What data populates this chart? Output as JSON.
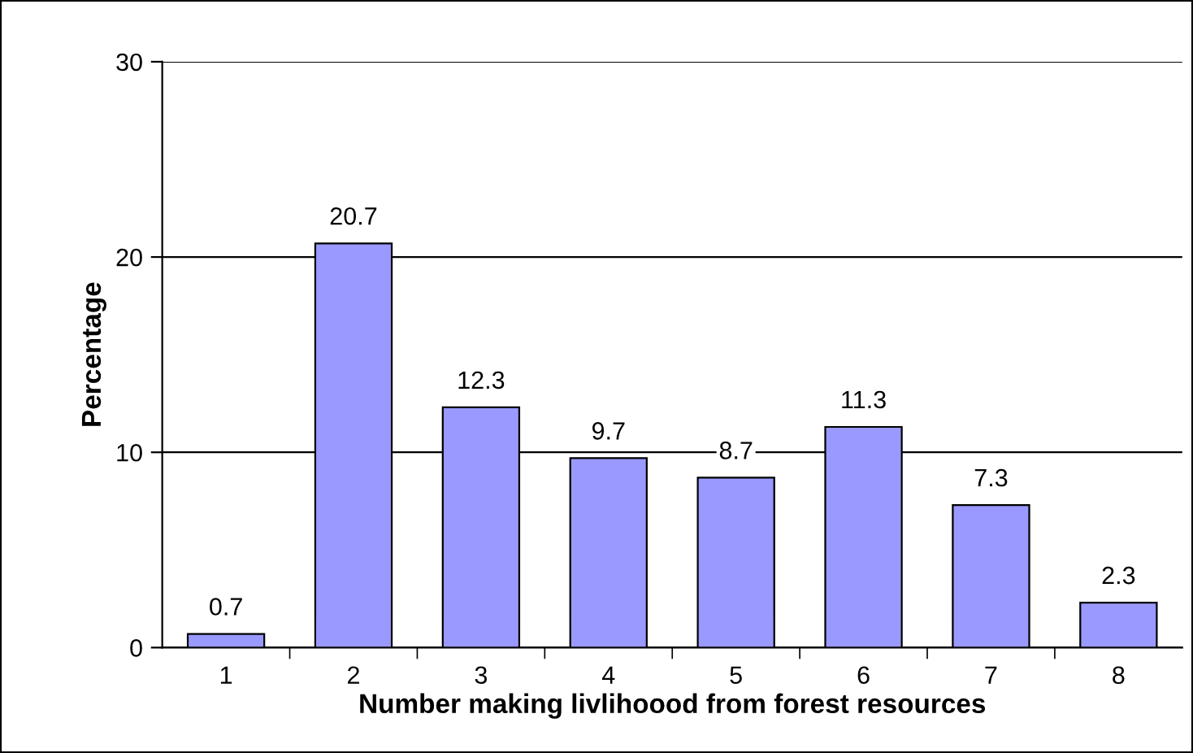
{
  "chart_data": {
    "type": "bar",
    "xlabel": "Number making livlihoood from forest resources",
    "ylabel": "Percentage",
    "categories": [
      "1",
      "2",
      "3",
      "4",
      "5",
      "6",
      "7",
      "8"
    ],
    "values": [
      0.7,
      20.7,
      12.3,
      9.7,
      8.7,
      11.3,
      7.3,
      2.3
    ],
    "color": "#9999ff",
    "ylim": [
      0,
      30
    ],
    "yticks": [
      0,
      10,
      20,
      30
    ],
    "grid": "y",
    "data_labels": true
  }
}
